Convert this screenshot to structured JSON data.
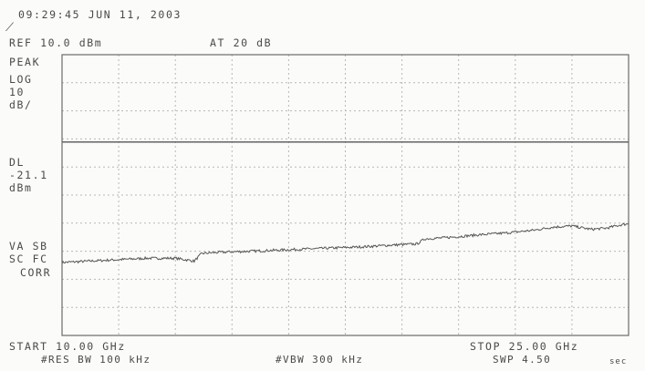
{
  "header": {
    "timestamp": "09:29:45 JUN 11, 2003",
    "ref_level": "REF 10.0 dBm",
    "attenuation": "AT 20 dB"
  },
  "left_labels": {
    "detector": "PEAK",
    "scale_1": "LOG",
    "scale_2": "10",
    "scale_3": "dB/",
    "display_line_1": "DL",
    "display_line_2": "-21.1",
    "display_line_3": "dBm",
    "flags_1": "VA SB",
    "flags_2": "SC FC",
    "flags_3": "CORR"
  },
  "footer": {
    "start": "START 10.00 GHz",
    "stop": "STOP 25.00 GHz",
    "rbw": "#RES BW 100 kHz",
    "vbw": "#VBW 300 kHz",
    "sweep": "SWP 4.50",
    "sweep_unit": "sec"
  },
  "colors": {
    "trace": "#555555",
    "grid": "#b8b8b8",
    "border": "#6a6a6a",
    "text": "#4a4a4a"
  },
  "chart_data": {
    "type": "line",
    "x_unit": "GHz",
    "y_unit": "dBm",
    "xlim": [
      10.0,
      25.0
    ],
    "ylim": [
      -90,
      10
    ],
    "reference_level": 10.0,
    "scale_db_per_div": 10,
    "display_line": -21.1,
    "grid": true,
    "series": [
      {
        "x": [
          10.0,
          10.75,
          11.5,
          12.25,
          13.0,
          13.5,
          13.7,
          14.0,
          14.5,
          15.0,
          15.75,
          16.5,
          17.25,
          18.0,
          18.75,
          19.4,
          19.6,
          20.0,
          20.5,
          21.0,
          21.75,
          22.5,
          23.0,
          23.5,
          24.0,
          24.4,
          24.8,
          25.0
        ],
        "y": [
          -64.0,
          -63.5,
          -63.0,
          -62.5,
          -62.5,
          -63.5,
          -60.8,
          -60.5,
          -60.2,
          -60.0,
          -59.6,
          -59.2,
          -58.8,
          -58.4,
          -57.8,
          -57.4,
          -55.6,
          -55.3,
          -54.8,
          -54.2,
          -53.5,
          -52.5,
          -51.4,
          -51.0,
          -52.2,
          -51.8,
          -50.6,
          -50.2
        ]
      }
    ]
  }
}
